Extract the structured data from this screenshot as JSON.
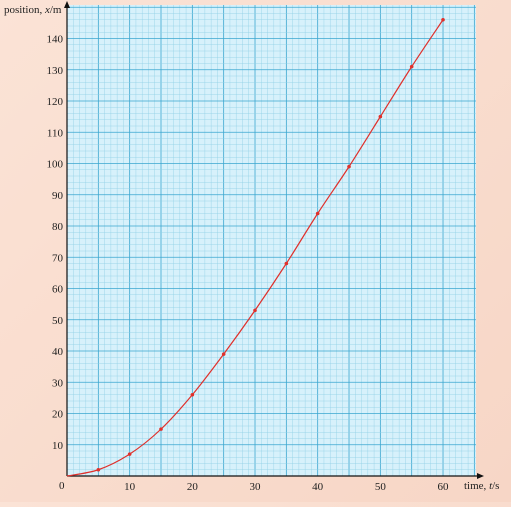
{
  "chart_data": {
    "type": "line",
    "xlabel_prefix": "time, ",
    "xlabel_var": "t",
    "xlabel_unit": "/s",
    "ylabel_prefix": "position, ",
    "ylabel_var": "x",
    "ylabel_unit": "/m",
    "origin_label": "0",
    "xlim": [
      0,
      65
    ],
    "ylim": [
      0,
      148
    ],
    "x_ticks": [
      10,
      20,
      30,
      40,
      50,
      60
    ],
    "y_ticks": [
      10,
      20,
      30,
      40,
      50,
      60,
      70,
      80,
      90,
      100,
      110,
      120,
      130,
      140
    ],
    "grid": true,
    "series": [
      {
        "markers": true,
        "x": [
          0,
          5,
          10,
          15,
          20,
          25,
          30,
          35,
          40,
          45,
          50,
          55,
          60
        ],
        "y": [
          0,
          2,
          7,
          15,
          26,
          39,
          53,
          68,
          84,
          99,
          115,
          131,
          146
        ]
      }
    ]
  },
  "colors": {
    "background": "#f8dccd",
    "plot_bg": "#d7f1fb",
    "grid_minor": "#8fcfe6",
    "grid_major": "#3aa6cf",
    "curve": "#e0302b",
    "marker": "#e0302b",
    "axis": "#111111"
  }
}
